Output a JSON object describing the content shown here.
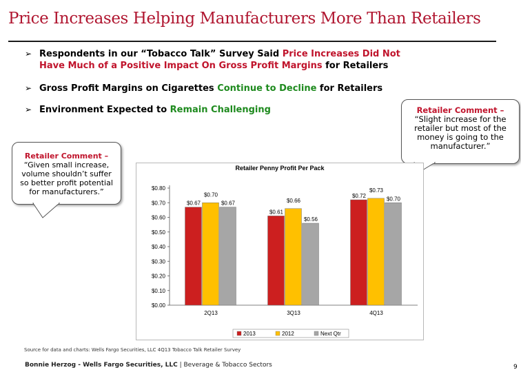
{
  "slide": {
    "title": "Price Increases Helping Manufacturers More Than Retailers",
    "bullets": [
      {
        "parts": [
          "Respondents in our “Tobacco Talk” Survey Said ",
          "Price Increases Did Not",
          "Have Much of a Positive Impact On Gross Profit Margins",
          " for Retailers"
        ]
      },
      {
        "parts": [
          "Gross Profit Margins on Cigarettes ",
          "Continue to Decline",
          " for Retailers"
        ]
      },
      {
        "parts": [
          "Environment Expected to ",
          "Remain Challenging"
        ]
      }
    ],
    "bullet_glyph": "➢",
    "colors": {
      "title": "#b01630",
      "highlight_green": "#1e8a1e",
      "highlight_red": "#c0142c"
    }
  },
  "callouts": {
    "left": {
      "head": "Retailer Comment –",
      "lines": [
        "“Given small increase,",
        "volume shouldn’t suffer",
        "so better profit potential",
        "for manufacturers.”"
      ]
    },
    "right": {
      "head": "Retailer Comment –",
      "lines": [
        "“Slight increase for the",
        "retailer but most of the",
        "money is going to the",
        "manufacturer.”"
      ]
    }
  },
  "chart_data": {
    "type": "bar",
    "title": "Retailer Penny Profit Per Pack",
    "categories": [
      "2Q13",
      "3Q13",
      "4Q13"
    ],
    "series": [
      {
        "name": "2013",
        "color": "#cc1f1f",
        "values": [
          0.67,
          0.61,
          0.72
        ],
        "labels": [
          "$0.67",
          "$0.61",
          "$0.72"
        ]
      },
      {
        "name": "2012",
        "color": "#ffc000",
        "values": [
          0.7,
          0.66,
          0.73
        ],
        "labels": [
          "$0.70",
          "$0.66",
          "$0.73"
        ]
      },
      {
        "name": "Next Qtr",
        "color": "#a6a6a6",
        "values": [
          0.67,
          0.56,
          0.7
        ],
        "labels": [
          "$0.67",
          "$0.56",
          "$0.70"
        ]
      }
    ],
    "ylim": [
      0,
      0.8
    ],
    "yticks": [
      "$0.00",
      "$0.10",
      "$0.20",
      "$0.30",
      "$0.40",
      "$0.50",
      "$0.60",
      "$0.70",
      "$0.80"
    ],
    "grid": false,
    "legend": "bottom"
  },
  "source": "Source for data and charts: Wells Fargo Securities, LLC 4Q13 Tobacco Talk Retailer Survey",
  "footer": {
    "author": "Bonnie Herzog - Wells Fargo Securities, LLC",
    "sep": " | ",
    "sector": "Beverage & Tobacco Sectors",
    "page": "9"
  }
}
